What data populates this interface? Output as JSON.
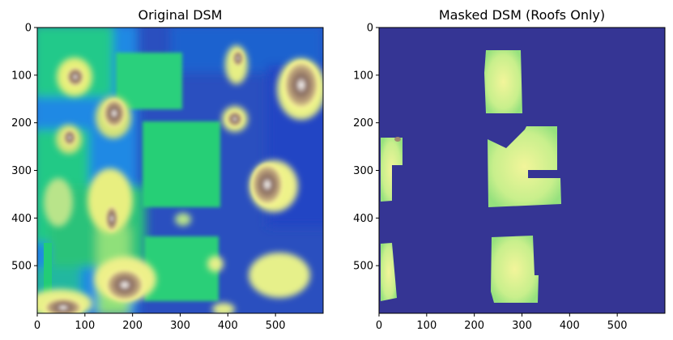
{
  "figure": {
    "panels": [
      {
        "title": "Original DSM"
      },
      {
        "title": "Masked DSM (Roofs Only)"
      }
    ],
    "colormap": [
      "#333399",
      "#0d66cc",
      "#0099ff",
      "#22cc77",
      "#88ee88",
      "#ffff99",
      "#bba07a",
      "#8a6e62",
      "#ffffff"
    ],
    "mask_background_color": "#353594"
  },
  "chart_data": [
    {
      "type": "heatmap",
      "title": "Original DSM",
      "xlabel": "",
      "ylabel": "",
      "xlim": [
        0,
        600
      ],
      "ylim": [
        600,
        0
      ],
      "xticks": [
        0,
        100,
        200,
        300,
        400,
        500
      ],
      "yticks": [
        0,
        100,
        200,
        300,
        400,
        500
      ],
      "grid": false
    },
    {
      "type": "heatmap",
      "title": "Masked DSM (Roofs Only)",
      "xlabel": "",
      "ylabel": "",
      "xlim": [
        0,
        600
      ],
      "ylim": [
        600,
        0
      ],
      "xticks": [
        0,
        100,
        200,
        300,
        400,
        500
      ],
      "yticks": [
        0,
        100,
        200,
        300,
        400,
        500
      ],
      "grid": false
    }
  ]
}
